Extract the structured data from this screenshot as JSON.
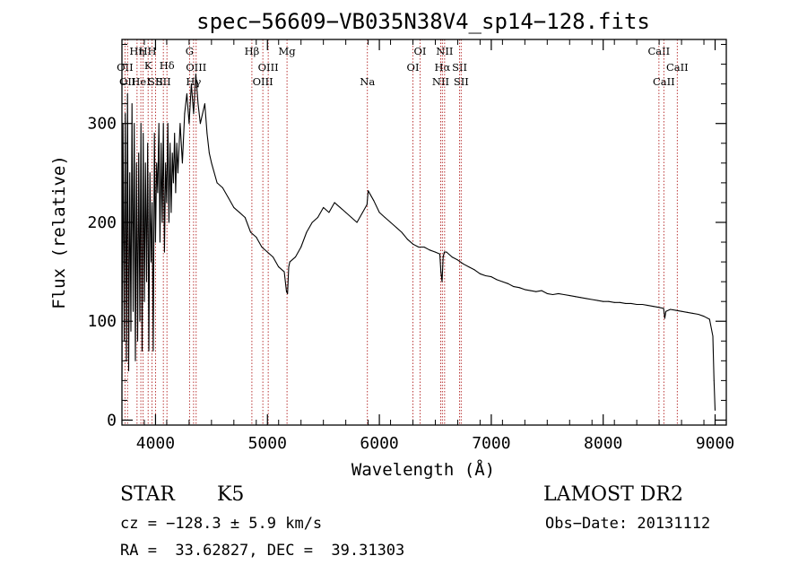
{
  "chart_data": {
    "type": "line",
    "title": "spec−56609−VB035N38V4_sp14−128.fits",
    "xlabel": "Wavelength (Å)",
    "ylabel": "Flux (relative)",
    "xlim": [
      3700,
      9100
    ],
    "ylim": [
      -5,
      385
    ],
    "xticks": [
      4000,
      5000,
      6000,
      7000,
      8000,
      9000
    ],
    "yticks": [
      0,
      100,
      200,
      300
    ],
    "grid": false,
    "series": [
      {
        "x": [
          3700,
          3710,
          3720,
          3730,
          3740,
          3750,
          3760,
          3770,
          3780,
          3790,
          3800,
          3810,
          3820,
          3830,
          3840,
          3850,
          3860,
          3870,
          3880,
          3890,
          3900,
          3910,
          3920,
          3930,
          3940,
          3950,
          3960,
          3970,
          3980,
          3990,
          4000,
          4010,
          4020,
          4030,
          4040,
          4050,
          4060,
          4070,
          4080,
          4090,
          4100,
          4110,
          4120,
          4130,
          4140,
          4150,
          4160,
          4170,
          4180,
          4190,
          4200,
          4220,
          4240,
          4260,
          4280,
          4300,
          4320,
          4340,
          4360,
          4380,
          4400,
          4420,
          4440,
          4460,
          4480,
          4500,
          4550,
          4600,
          4650,
          4700,
          4750,
          4800,
          4850,
          4900,
          4950,
          5000,
          5050,
          5100,
          5150,
          5170,
          5180,
          5190,
          5200,
          5250,
          5300,
          5350,
          5400,
          5450,
          5500,
          5550,
          5600,
          5650,
          5700,
          5750,
          5800,
          5850,
          5890,
          5900,
          5950,
          6000,
          6050,
          6100,
          6150,
          6200,
          6250,
          6300,
          6350,
          6400,
          6450,
          6500,
          6540,
          6550,
          6560,
          6570,
          6580,
          6600,
          6650,
          6700,
          6750,
          6800,
          6850,
          6900,
          6950,
          7000,
          7050,
          7100,
          7150,
          7200,
          7250,
          7300,
          7350,
          7400,
          7450,
          7500,
          7550,
          7600,
          7650,
          7700,
          7750,
          7800,
          7850,
          7900,
          7950,
          8000,
          8050,
          8100,
          8150,
          8200,
          8250,
          8300,
          8350,
          8400,
          8450,
          8500,
          8540,
          8550,
          8560,
          8600,
          8650,
          8700,
          8750,
          8800,
          8850,
          8900,
          8950,
          8980,
          8990,
          9000
        ],
        "values": [
          40,
          300,
          80,
          310,
          60,
          330,
          50,
          250,
          90,
          320,
          110,
          300,
          60,
          260,
          80,
          270,
          100,
          300,
          70,
          290,
          120,
          260,
          140,
          280,
          70,
          250,
          160,
          220,
          70,
          290,
          180,
          260,
          230,
          300,
          180,
          280,
          200,
          300,
          170,
          260,
          220,
          300,
          200,
          280,
          210,
          270,
          240,
          290,
          230,
          280,
          250,
          300,
          260,
          310,
          330,
          300,
          340,
          310,
          350,
          320,
          300,
          310,
          320,
          290,
          270,
          260,
          240,
          235,
          225,
          215,
          210,
          205,
          190,
          185,
          175,
          170,
          165,
          155,
          150,
          130,
          128,
          155,
          160,
          165,
          175,
          190,
          200,
          205,
          215,
          210,
          220,
          215,
          210,
          205,
          200,
          210,
          218,
          232,
          222,
          210,
          205,
          200,
          195,
          190,
          183,
          178,
          175,
          175,
          172,
          170,
          168,
          150,
          140,
          165,
          170,
          170,
          165,
          162,
          158,
          155,
          152,
          148,
          146,
          145,
          142,
          140,
          138,
          135,
          134,
          132,
          131,
          130,
          131,
          128,
          127,
          128,
          127,
          126,
          125,
          124,
          123,
          122,
          121,
          120,
          120,
          119,
          119,
          118,
          118,
          117,
          117,
          116,
          115,
          114,
          113,
          103,
          110,
          112,
          111,
          110,
          109,
          108,
          107,
          105,
          102,
          85,
          40,
          10
        ]
      }
    ],
    "line_marks": [
      {
        "x": 3727,
        "rows": [
          {
            "label": "OII",
            "row": 2
          }
        ]
      },
      {
        "x": 3750,
        "rows": [
          {
            "label": "OII",
            "row": 3
          }
        ]
      },
      {
        "x": 3835,
        "rows": [
          {
            "label": "Hη",
            "row": 0
          }
        ]
      },
      {
        "x": 3869,
        "rows": [
          {
            "label": "HeI",
            "row": 3
          }
        ]
      },
      {
        "x": 3889,
        "rows": [
          {
            "label": "H",
            "row": 0
          }
        ]
      },
      {
        "x": 3934,
        "rows": [
          {
            "label": "K",
            "row": 1
          }
        ]
      },
      {
        "x": 3969,
        "rows": [
          {
            "label": "H",
            "row": 0
          }
        ]
      },
      {
        "x": 4000,
        "rows": [
          {
            "label": "SII",
            "row": 3
          }
        ]
      },
      {
        "x": 4070,
        "rows": [
          {
            "label": "SII",
            "row": 3
          }
        ]
      },
      {
        "x": 4102,
        "rows": [
          {
            "label": "Hδ",
            "row": 1
          }
        ]
      },
      {
        "x": 4304,
        "rows": [
          {
            "label": "G",
            "row": 0
          }
        ]
      },
      {
        "x": 4340,
        "rows": [
          {
            "label": "Hγ",
            "row": 3
          }
        ]
      },
      {
        "x": 4363,
        "rows": [
          {
            "label": "OIII",
            "row": 2
          }
        ]
      },
      {
        "x": 4861,
        "rows": [
          {
            "label": "Hβ",
            "row": 0
          }
        ]
      },
      {
        "x": 4959,
        "rows": [
          {
            "label": "OIII",
            "row": 3
          }
        ]
      },
      {
        "x": 5007,
        "rows": [
          {
            "label": "OIII",
            "row": 2
          }
        ]
      },
      {
        "x": 5175,
        "rows": [
          {
            "label": "Mg",
            "row": 0
          }
        ]
      },
      {
        "x": 5893,
        "rows": [
          {
            "label": "Na",
            "row": 3
          }
        ]
      },
      {
        "x": 6300,
        "rows": [
          {
            "label": "OI",
            "row": 2
          }
        ]
      },
      {
        "x": 6364,
        "rows": [
          {
            "label": "OI",
            "row": 0
          }
        ]
      },
      {
        "x": 6548,
        "rows": [
          {
            "label": "NII",
            "row": 3
          }
        ]
      },
      {
        "x": 6563,
        "rows": [
          {
            "label": "Hα",
            "row": 2
          }
        ]
      },
      {
        "x": 6583,
        "rows": [
          {
            "label": "NII",
            "row": 0
          }
        ]
      },
      {
        "x": 6717,
        "rows": [
          {
            "label": "SII",
            "row": 2
          }
        ]
      },
      {
        "x": 6731,
        "rows": [
          {
            "label": "SII",
            "row": 3
          }
        ]
      },
      {
        "x": 8498,
        "rows": [
          {
            "label": "CaII",
            "row": 0
          }
        ]
      },
      {
        "x": 8542,
        "rows": [
          {
            "label": "CaII",
            "row": 3
          }
        ]
      },
      {
        "x": 8662,
        "rows": [
          {
            "label": "CaII",
            "row": 2
          }
        ]
      }
    ]
  },
  "info": {
    "object_class": "STAR",
    "subclass": "K5",
    "survey": "LAMOST DR2",
    "redshift": "cz = −128.3 ± 5.9 km/s",
    "obs_date": "Obs−Date: 20131112",
    "coords": "RA =  33.62827, DEC =  39.31303"
  },
  "colors": {
    "spectrum": "#000000",
    "line_markers": "#b22222",
    "axes": "#000000"
  }
}
